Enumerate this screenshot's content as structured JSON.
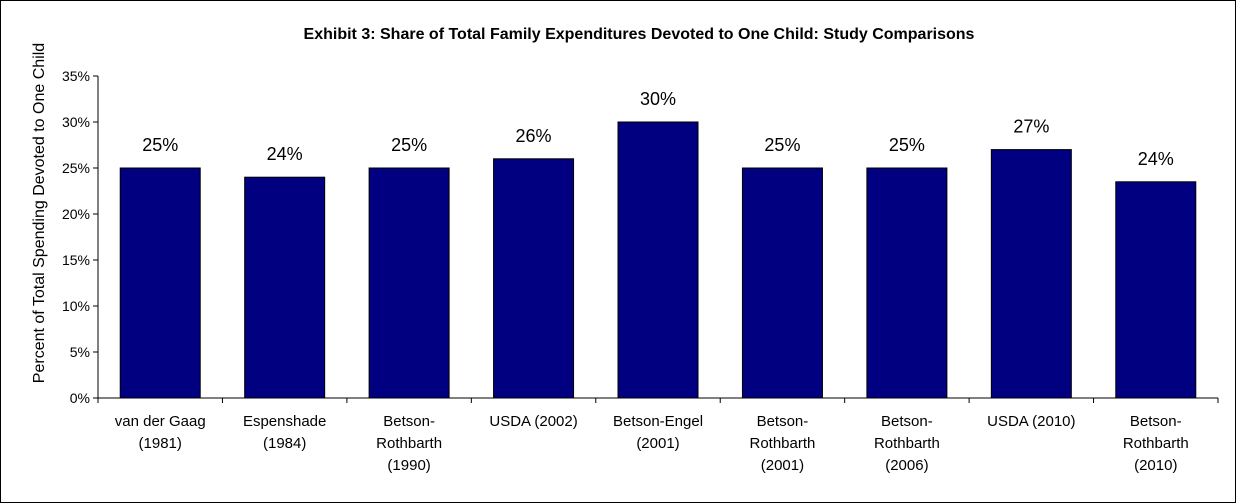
{
  "chart_data": {
    "type": "bar",
    "title": "Exhibit 3: Share of Total Family Expenditures Devoted to One Child: Study Comparisons",
    "xlabel": "",
    "ylabel": "Percent of Total Spending Devoted to One Child",
    "ylim": [
      0,
      35
    ],
    "yticks": [
      "0%",
      "5%",
      "10%",
      "15%",
      "20%",
      "25%",
      "30%",
      "35%"
    ],
    "grid": false,
    "legend": "none",
    "bar_color": "#000080",
    "categories": [
      [
        "van der Gaag",
        "(1981)"
      ],
      [
        "Espenshade",
        "(1984)"
      ],
      [
        "Betson-",
        "Rothbarth",
        "(1990)"
      ],
      [
        "USDA (2002)"
      ],
      [
        "Betson-Engel",
        "(2001)"
      ],
      [
        "Betson-",
        "Rothbarth",
        "(2001)"
      ],
      [
        "Betson-",
        "Rothbarth",
        "(2006)"
      ],
      [
        "USDA (2010)"
      ],
      [
        "Betson-",
        "Rothbarth",
        "(2010)"
      ]
    ],
    "values": [
      25,
      24,
      25,
      26,
      30,
      25,
      25,
      27,
      23.5
    ],
    "data_labels": [
      "25%",
      "24%",
      "25%",
      "26%",
      "30%",
      "25%",
      "25%",
      "27%",
      "24%"
    ]
  }
}
